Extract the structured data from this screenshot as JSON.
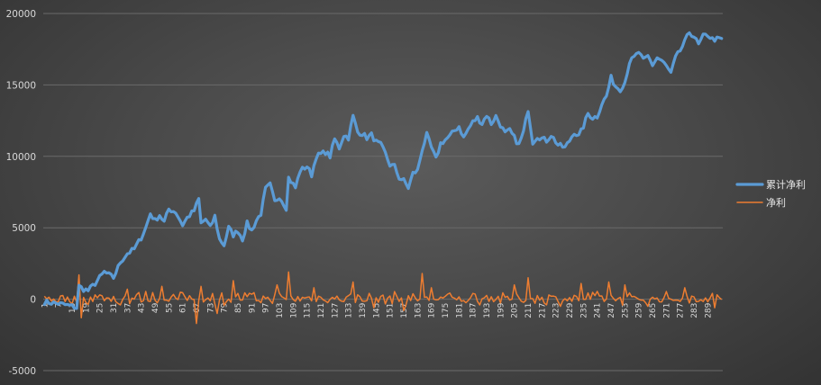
{
  "chart_data": {
    "type": "line",
    "title": "",
    "xlabel": "",
    "ylabel": "",
    "ylim": [
      -5000,
      20000
    ],
    "y_ticks": [
      -5000,
      0,
      5000,
      10000,
      15000,
      20000
    ],
    "x_range": [
      1,
      295
    ],
    "x_tick_labels": [
      "1",
      "7",
      "13",
      "19",
      "25",
      "31",
      "37",
      "43",
      "49",
      "55",
      "61",
      "67",
      "73",
      "79",
      "85",
      "91",
      "97",
      "103",
      "109",
      "115",
      "121",
      "127",
      "133",
      "139",
      "145",
      "151",
      "157",
      "163",
      "169",
      "175",
      "181",
      "187",
      "193",
      "199",
      "205",
      "211",
      "217",
      "223",
      "229",
      "235",
      "241",
      "247",
      "253",
      "259",
      "265",
      "271",
      "277",
      "283",
      "289"
    ],
    "grid": "horizontal",
    "legend_position": "right",
    "series": [
      {
        "name": "累计净利",
        "color": "#5b9bd5",
        "anchors": [
          [
            1,
            -200
          ],
          [
            7,
            -300
          ],
          [
            13,
            -500
          ],
          [
            15,
            -600
          ],
          [
            16,
            900
          ],
          [
            18,
            700
          ],
          [
            20,
            600
          ],
          [
            23,
            1100
          ],
          [
            27,
            1900
          ],
          [
            31,
            1500
          ],
          [
            34,
            2600
          ],
          [
            37,
            3200
          ],
          [
            40,
            3500
          ],
          [
            43,
            4300
          ],
          [
            45,
            5000
          ],
          [
            47,
            6000
          ],
          [
            49,
            5500
          ],
          [
            51,
            5900
          ],
          [
            53,
            5400
          ],
          [
            55,
            6300
          ],
          [
            58,
            6100
          ],
          [
            61,
            5200
          ],
          [
            63,
            5700
          ],
          [
            66,
            6200
          ],
          [
            68,
            7000
          ],
          [
            69,
            5300
          ],
          [
            71,
            5600
          ],
          [
            73,
            5000
          ],
          [
            75,
            5800
          ],
          [
            77,
            4200
          ],
          [
            79,
            3800
          ],
          [
            81,
            5000
          ],
          [
            83,
            4500
          ],
          [
            85,
            4800
          ],
          [
            87,
            4200
          ],
          [
            89,
            5300
          ],
          [
            91,
            4800
          ],
          [
            93,
            5500
          ],
          [
            95,
            6000
          ],
          [
            97,
            7700
          ],
          [
            99,
            8000
          ],
          [
            101,
            6800
          ],
          [
            103,
            7200
          ],
          [
            106,
            6400
          ],
          [
            107,
            8500
          ],
          [
            110,
            7800
          ],
          [
            112,
            9000
          ],
          [
            115,
            9300
          ],
          [
            117,
            8700
          ],
          [
            119,
            10000
          ],
          [
            123,
            10300
          ],
          [
            125,
            10000
          ],
          [
            127,
            11200
          ],
          [
            129,
            10600
          ],
          [
            131,
            11500
          ],
          [
            133,
            11300
          ],
          [
            135,
            12800
          ],
          [
            137,
            11700
          ],
          [
            139,
            11600
          ],
          [
            141,
            11300
          ],
          [
            143,
            11500
          ],
          [
            145,
            11000
          ],
          [
            147,
            10800
          ],
          [
            149,
            10200
          ],
          [
            151,
            9400
          ],
          [
            153,
            9300
          ],
          [
            155,
            8500
          ],
          [
            157,
            8300
          ],
          [
            159,
            7800
          ],
          [
            161,
            8800
          ],
          [
            163,
            9000
          ],
          [
            165,
            10500
          ],
          [
            167,
            11500
          ],
          [
            169,
            10600
          ],
          [
            171,
            9800
          ],
          [
            173,
            10900
          ],
          [
            177,
            11400
          ],
          [
            179,
            11800
          ],
          [
            181,
            12100
          ],
          [
            183,
            11300
          ],
          [
            185,
            11900
          ],
          [
            187,
            12400
          ],
          [
            189,
            12700
          ],
          [
            191,
            12300
          ],
          [
            193,
            12900
          ],
          [
            195,
            12300
          ],
          [
            197,
            12800
          ],
          [
            199,
            12200
          ],
          [
            201,
            11600
          ],
          [
            203,
            11800
          ],
          [
            205,
            11300
          ],
          [
            207,
            10800
          ],
          [
            209,
            11700
          ],
          [
            211,
            13300
          ],
          [
            213,
            11000
          ],
          [
            215,
            11400
          ],
          [
            219,
            11100
          ],
          [
            221,
            11500
          ],
          [
            224,
            10800
          ],
          [
            227,
            10600
          ],
          [
            229,
            11100
          ],
          [
            231,
            11700
          ],
          [
            233,
            11400
          ],
          [
            235,
            12100
          ],
          [
            237,
            13000
          ],
          [
            239,
            12700
          ],
          [
            241,
            12800
          ],
          [
            243,
            13700
          ],
          [
            245,
            14200
          ],
          [
            247,
            15500
          ],
          [
            249,
            14900
          ],
          [
            251,
            14700
          ],
          [
            253,
            15200
          ],
          [
            255,
            16600
          ],
          [
            257,
            16900
          ],
          [
            259,
            17300
          ],
          [
            261,
            16700
          ],
          [
            263,
            17000
          ],
          [
            265,
            16400
          ],
          [
            267,
            16900
          ],
          [
            269,
            16700
          ],
          [
            271,
            16300
          ],
          [
            273,
            15800
          ],
          [
            275,
            16900
          ],
          [
            277,
            17400
          ],
          [
            279,
            18000
          ],
          [
            281,
            18700
          ],
          [
            283,
            18400
          ],
          [
            285,
            17800
          ],
          [
            287,
            18400
          ],
          [
            289,
            18500
          ],
          [
            291,
            18200
          ]
        ],
        "noise": 180
      },
      {
        "name": "净利",
        "color": "#ed7d31",
        "base_amplitude": 380,
        "spikes": [
          [
            16,
            1700
          ],
          [
            17,
            -1300
          ],
          [
            34,
            -400
          ],
          [
            37,
            700
          ],
          [
            52,
            900
          ],
          [
            67,
            -1700
          ],
          [
            69,
            900
          ],
          [
            76,
            -1000
          ],
          [
            83,
            1300
          ],
          [
            102,
            1000
          ],
          [
            107,
            1900
          ],
          [
            118,
            800
          ],
          [
            135,
            1200
          ],
          [
            144,
            -600
          ],
          [
            157,
            -800
          ],
          [
            165,
            1800
          ],
          [
            169,
            800
          ],
          [
            205,
            1000
          ],
          [
            211,
            1500
          ],
          [
            225,
            -500
          ],
          [
            234,
            1100
          ],
          [
            246,
            1200
          ],
          [
            253,
            1000
          ],
          [
            263,
            -500
          ],
          [
            279,
            800
          ],
          [
            292,
            -600
          ]
        ]
      }
    ]
  }
}
